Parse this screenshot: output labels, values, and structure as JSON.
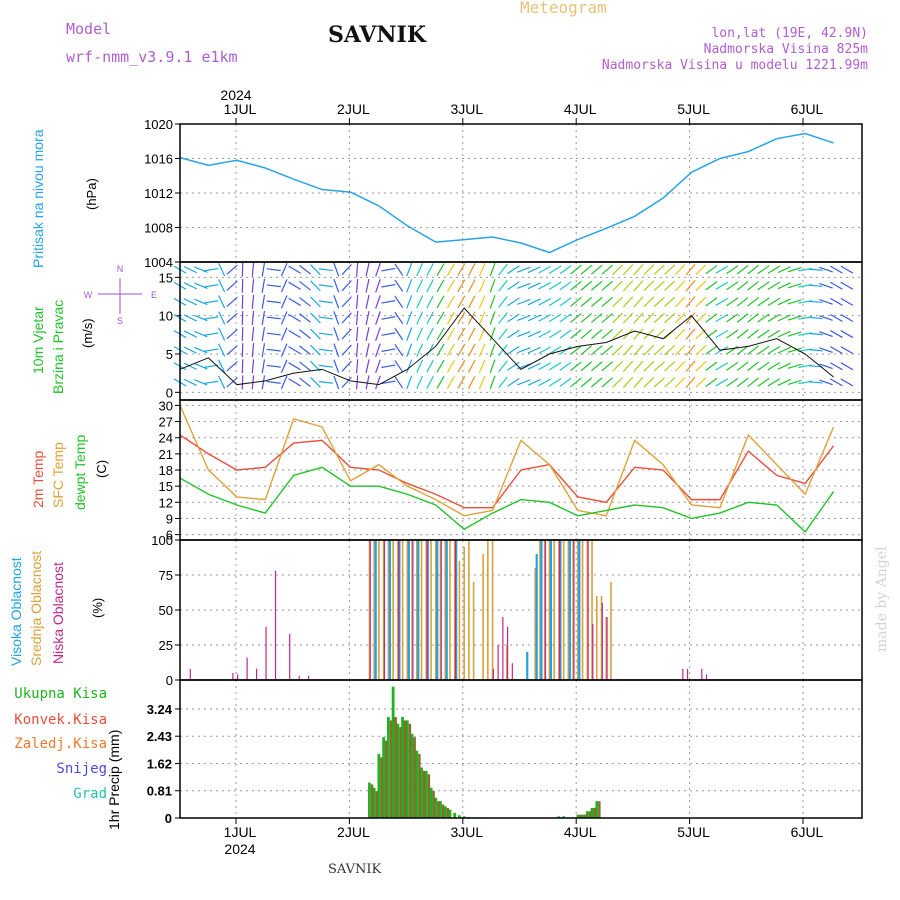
{
  "header": {
    "model_label": "Model",
    "model_name": "wrf-nmm_v3.9.1 e1km",
    "title": "SAVNIK",
    "meteogram_label": "Meteogram",
    "lonlat": "lon,lat (19E, 42.9N)",
    "altitude": "Nadmorska Visina 825m",
    "model_altitude": "Nadmorska Visina u modelu 1221.99m",
    "watermark": "made by Angel",
    "footer_station": "SAVNIK"
  },
  "colors": {
    "pressure": "#29a3e6",
    "temp_2m": "#e8503c",
    "temp_sfc": "#e0a23a",
    "dewpoint": "#22c22a",
    "cloud_high": "#1fa3e6",
    "cloud_mid": "#d9a13b",
    "cloud_low": "#c3268c",
    "precip_total": "#1fb31f",
    "precip_conv": "#8c6a2e",
    "grid": "#9a9a9a",
    "title_purple": "#b05ecf",
    "meteogram_orange": "#e8c27a"
  },
  "chart_data": [
    {
      "type": "line",
      "id": "pressure",
      "ylabel": "Pritisak na nivou mora",
      "yunit": "(hPa)",
      "ylim": [
        1004,
        1020
      ],
      "yticks": [
        1004,
        1008,
        1012,
        1016,
        1020
      ],
      "x_top_year": "2024",
      "x_days": [
        "1JUL",
        "2JUL",
        "3JUL",
        "4JUL",
        "5JUL",
        "6JUL"
      ],
      "x_hours": [
        0,
        6,
        12,
        18,
        24,
        30,
        36,
        42,
        48,
        54,
        60,
        66,
        72,
        78,
        84,
        90,
        96,
        102,
        108,
        114,
        120,
        126,
        132,
        138
      ],
      "series": [
        {
          "values": [
            1016.1,
            1015.2,
            1015.8,
            1014.9,
            1013.6,
            1012.4,
            1012.1,
            1010.5,
            1008.2,
            1006.3,
            1006.6,
            1006.9,
            1006.2,
            1005.1,
            1006.6,
            1007.9,
            1009.3,
            1011.4,
            1014.4,
            1016.0,
            1016.8,
            1018.3,
            1018.9,
            1017.8
          ]
        }
      ]
    },
    {
      "type": "line",
      "id": "wind",
      "ylabel": "10m Vjetar",
      "ylabel2": "Brzina i Pravac",
      "yunit": "(m/s)",
      "compass": {
        "n": "N",
        "s": "S",
        "w": "W",
        "e": "E"
      },
      "ylim": [
        -1,
        17
      ],
      "yticks": [
        0,
        5,
        10,
        15
      ],
      "x_hours": [
        0,
        6,
        12,
        18,
        24,
        30,
        36,
        42,
        48,
        54,
        60,
        66,
        72,
        78,
        84,
        90,
        96,
        102,
        108,
        114,
        120,
        126,
        132,
        138
      ],
      "series": [
        {
          "name": "speed",
          "values": [
            3,
            4.5,
            1,
            1.5,
            2.5,
            3,
            1.5,
            1,
            3,
            6,
            11,
            7,
            3,
            5,
            6,
            6.5,
            8,
            7,
            10,
            5.5,
            6,
            7,
            5,
            2
          ]
        }
      ],
      "direction_deg": [
        300,
        290,
        0,
        10,
        300,
        320,
        0,
        20,
        200,
        210,
        210,
        200,
        250,
        240,
        230,
        230,
        220,
        230,
        220,
        240,
        230,
        240,
        260,
        300
      ]
    },
    {
      "type": "line",
      "id": "temperature",
      "ylabel": "2m Temp",
      "ylabel2": "SFC Temp",
      "ylabel3": "dewpt Temp",
      "yunit": "(C)",
      "ylim": [
        5,
        31
      ],
      "yticks": [
        6,
        9,
        12,
        15,
        18,
        21,
        24,
        27,
        30
      ],
      "x_hours": [
        0,
        6,
        12,
        18,
        24,
        30,
        36,
        42,
        48,
        54,
        60,
        66,
        72,
        78,
        84,
        90,
        96,
        102,
        108,
        114,
        120,
        126,
        132,
        138
      ],
      "series": [
        {
          "name": "2m",
          "values": [
            24.5,
            21,
            18,
            18.5,
            23,
            23.5,
            18.5,
            18,
            15.5,
            13.5,
            11,
            11,
            18,
            19,
            13,
            12,
            18.5,
            18,
            12.5,
            12.5,
            21.5,
            17,
            15.5,
            22.5
          ]
        },
        {
          "name": "sfc",
          "values": [
            30,
            18,
            13,
            12.5,
            27.5,
            26,
            16,
            19,
            15,
            12.5,
            9.5,
            10.5,
            23.5,
            19,
            10.5,
            9.5,
            23.5,
            19,
            11.5,
            11,
            24.5,
            19,
            13.5,
            26
          ]
        },
        {
          "name": "dewpt",
          "values": [
            16.5,
            13.5,
            11.5,
            10,
            17,
            18.5,
            15,
            15,
            13.5,
            11.5,
            7,
            10,
            12.5,
            12,
            9.5,
            10.5,
            11.5,
            11,
            9,
            10,
            12,
            11.5,
            6.5,
            14
          ]
        }
      ]
    },
    {
      "type": "bar",
      "id": "clouds",
      "ylabel": "Visoka Oblacnost",
      "ylabel2": "Srednja Oblacnost",
      "ylabel3": "Niska Oblacnost",
      "yunit": "(%)",
      "ylim": [
        0,
        100
      ],
      "yticks": [
        0,
        25,
        50,
        75,
        100
      ],
      "mid_bars": {
        "x": [
          40,
          41,
          42,
          43,
          44,
          45,
          46,
          47,
          48,
          49,
          50,
          51,
          52,
          53,
          54,
          55,
          56,
          57,
          58,
          59,
          60,
          61,
          62,
          64,
          65,
          66,
          69,
          75,
          76,
          77,
          78,
          79,
          80,
          81,
          82,
          83,
          84,
          85,
          86,
          87,
          88,
          89,
          90,
          91
        ],
        "values": [
          100,
          100,
          100,
          100,
          100,
          100,
          100,
          100,
          100,
          100,
          100,
          100,
          100,
          100,
          100,
          100,
          100,
          100,
          100,
          85,
          95,
          100,
          70,
          90,
          100,
          100,
          25,
          80,
          100,
          100,
          100,
          100,
          100,
          100,
          100,
          100,
          100,
          100,
          100,
          100,
          60,
          60,
          45,
          70
        ]
      },
      "high_bars": {
        "x": [
          41,
          44,
          46,
          48,
          50,
          52,
          54,
          56,
          58,
          73,
          75,
          76,
          78,
          80,
          82,
          84
        ],
        "values": [
          100,
          100,
          100,
          100,
          100,
          100,
          100,
          100,
          100,
          20,
          90,
          100,
          100,
          100,
          100,
          100
        ]
      },
      "low_bars": {
        "x": [
          2,
          11,
          12,
          14,
          16,
          18,
          20,
          23,
          25,
          27,
          40,
          43,
          46,
          49,
          52,
          55,
          58,
          66,
          67,
          68,
          69,
          70,
          77,
          80,
          83,
          86,
          87,
          89,
          90,
          106,
          107,
          110,
          111
        ],
        "values": [
          8,
          5,
          4,
          16,
          8,
          38,
          78,
          33,
          3,
          3,
          100,
          100,
          100,
          100,
          100,
          100,
          100,
          8,
          25,
          45,
          38,
          12,
          100,
          100,
          100,
          100,
          40,
          55,
          45,
          8,
          8,
          8,
          4
        ]
      }
    },
    {
      "type": "bar",
      "id": "precip",
      "ylabel": "1hr Precip",
      "yunit": "(mm)",
      "legend": [
        "Ukupna Kisa",
        "Konvek.Kisa",
        "Zaledj.Kisa",
        "Snijeg",
        "Grad"
      ],
      "ylim": [
        0,
        4.1
      ],
      "ytick_labels": [
        "0",
        "0.81",
        "1.62",
        "2.43",
        "3.24"
      ],
      "x_days": [
        "1JUL",
        "2JUL",
        "3JUL",
        "4JUL",
        "5JUL",
        "6JUL"
      ],
      "x_bottom_year": "2024",
      "total": {
        "x": [
          40,
          41,
          42,
          43,
          44,
          45,
          46,
          47,
          48,
          49,
          50,
          51,
          52,
          53,
          54,
          55,
          56,
          57,
          58,
          59,
          60,
          61,
          62,
          63,
          64,
          65,
          68,
          69,
          79,
          80,
          81,
          82,
          83,
          84,
          85,
          86,
          87,
          88
        ],
        "values": [
          1.05,
          0.9,
          1.9,
          2.4,
          3.0,
          3.9,
          2.8,
          3.0,
          2.9,
          2.5,
          2.0,
          1.5,
          1.4,
          0.9,
          0.6,
          0.5,
          0.35,
          0.25,
          0.15,
          0.08,
          0.05,
          0.03,
          0.02,
          0.02,
          0.02,
          0.02,
          0.02,
          0.02,
          0.02,
          0.05,
          0.05,
          0.02,
          0.02,
          0.1,
          0.1,
          0.2,
          0.3,
          0.5
        ]
      },
      "convective": {
        "x": [
          40,
          41,
          42,
          43,
          44,
          45,
          46,
          47,
          48,
          49,
          50,
          51,
          52,
          53,
          54,
          55,
          56,
          84,
          85,
          86,
          87,
          88
        ],
        "values": [
          1.0,
          0.8,
          1.8,
          2.3,
          2.9,
          3.0,
          2.7,
          2.9,
          2.8,
          2.4,
          1.9,
          1.4,
          1.3,
          0.8,
          0.5,
          0.4,
          0.3,
          0.1,
          0.1,
          0.2,
          0.3,
          0.5
        ]
      }
    }
  ]
}
